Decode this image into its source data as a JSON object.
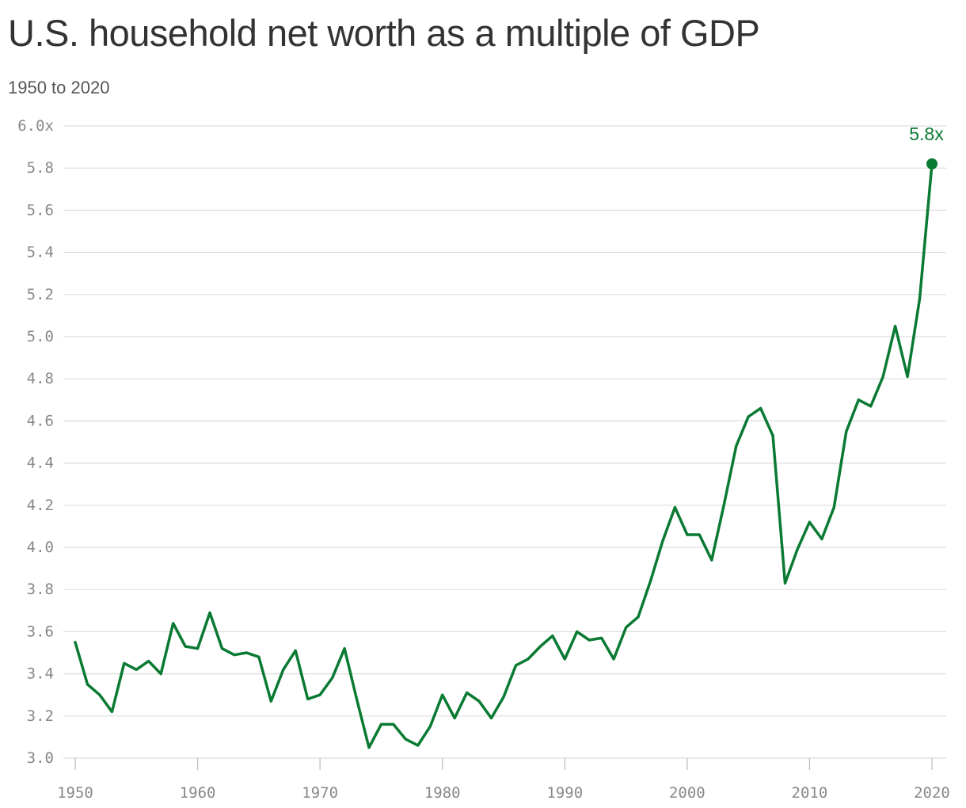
{
  "header": {
    "title": "U.S. household net worth as a multiple of GDP",
    "subtitle": "1950 to 2020"
  },
  "colors": {
    "line": "#0a7a33",
    "grid": "#dddddd",
    "tick_text": "#888888"
  },
  "chart_data": {
    "type": "line",
    "title": "U.S. household net worth as a multiple of GDP",
    "subtitle": "1950 to 2020",
    "xlabel": "",
    "ylabel": "",
    "xlim": [
      1950,
      2020
    ],
    "ylim": [
      3.0,
      6.0
    ],
    "x_ticks": [
      1950,
      1960,
      1970,
      1980,
      1990,
      2000,
      2010,
      2020
    ],
    "x_tick_labels": [
      "1950",
      "1960",
      "1970",
      "1980",
      "1990",
      "2000",
      "2010",
      "2020"
    ],
    "y_ticks": [
      3.0,
      3.2,
      3.4,
      3.6,
      3.8,
      4.0,
      4.2,
      4.4,
      4.6,
      4.8,
      5.0,
      5.2,
      5.4,
      5.6,
      5.8,
      6.0
    ],
    "y_tick_labels": [
      "3.0",
      "3.2",
      "3.4",
      "3.6",
      "3.8",
      "4.0",
      "4.2",
      "4.4",
      "4.6",
      "4.8",
      "5.0",
      "5.2",
      "5.4",
      "5.6",
      "5.8",
      "6.0x"
    ],
    "grid": true,
    "legend": "none",
    "end_label": "5.8x",
    "series": [
      {
        "x": [
          1950,
          1951,
          1952,
          1953,
          1954,
          1955,
          1956,
          1957,
          1958,
          1959,
          1960,
          1961,
          1962,
          1963,
          1964,
          1965,
          1966,
          1967,
          1968,
          1969,
          1970,
          1971,
          1972,
          1973,
          1974,
          1975,
          1976,
          1977,
          1978,
          1979,
          1980,
          1981,
          1982,
          1983,
          1984,
          1985,
          1986,
          1987,
          1988,
          1989,
          1990,
          1991,
          1992,
          1993,
          1994,
          1995,
          1996,
          1997,
          1998,
          1999,
          2000,
          2001,
          2002,
          2003,
          2004,
          2005,
          2006,
          2007,
          2008,
          2009,
          2010,
          2011,
          2012,
          2013,
          2014,
          2015,
          2016,
          2017,
          2018,
          2019,
          2020
        ],
        "values": [
          3.55,
          3.35,
          3.3,
          3.22,
          3.45,
          3.42,
          3.46,
          3.4,
          3.64,
          3.53,
          3.52,
          3.69,
          3.52,
          3.49,
          3.5,
          3.48,
          3.27,
          3.42,
          3.51,
          3.28,
          3.3,
          3.38,
          3.52,
          3.28,
          3.05,
          3.16,
          3.16,
          3.09,
          3.06,
          3.15,
          3.3,
          3.19,
          3.31,
          3.27,
          3.19,
          3.29,
          3.44,
          3.47,
          3.53,
          3.58,
          3.47,
          3.6,
          3.56,
          3.57,
          3.47,
          3.62,
          3.67,
          3.84,
          4.03,
          4.19,
          4.06,
          4.06,
          3.94,
          4.2,
          4.48,
          4.62,
          4.66,
          4.53,
          3.83,
          3.99,
          4.12,
          4.04,
          4.19,
          4.55,
          4.7,
          4.67,
          4.81,
          5.05,
          4.81,
          5.18,
          5.82
        ]
      }
    ]
  }
}
